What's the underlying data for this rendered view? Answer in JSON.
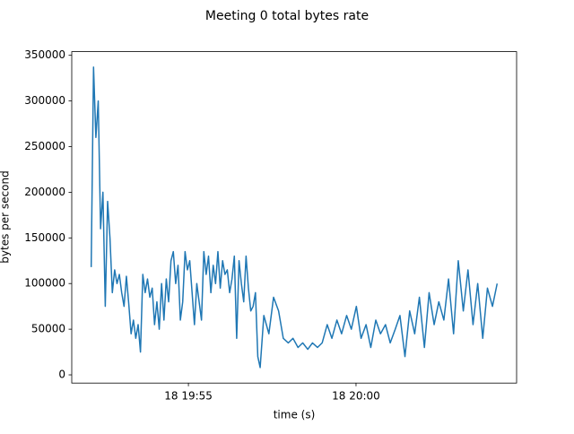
{
  "chart_data": {
    "type": "line",
    "title": "Meeting 0 total bytes rate",
    "x_label": "time (s)",
    "y_label": "bytes per second",
    "color": "#1f77b4",
    "x": [
      52.1,
      52.17,
      52.24,
      52.31,
      52.38,
      52.45,
      52.52,
      52.59,
      52.66,
      52.73,
      52.8,
      52.87,
      52.94,
      53.01,
      53.08,
      53.15,
      53.22,
      53.29,
      53.36,
      53.43,
      53.5,
      53.57,
      53.64,
      53.71,
      53.78,
      53.85,
      53.92,
      53.99,
      54.06,
      54.13,
      54.2,
      54.27,
      54.34,
      54.41,
      54.48,
      54.55,
      54.62,
      54.69,
      54.76,
      54.83,
      54.9,
      54.97,
      55.04,
      55.11,
      55.18,
      55.25,
      55.32,
      55.39,
      55.46,
      55.53,
      55.6,
      55.67,
      55.74,
      55.81,
      55.88,
      55.95,
      56.02,
      56.09,
      56.16,
      56.23,
      56.3,
      56.37,
      56.44,
      56.51,
      56.58,
      56.65,
      56.72,
      56.79,
      56.86,
      56.93,
      57.0,
      57.07,
      57.14,
      57.25,
      57.4,
      57.54,
      57.69,
      57.83,
      57.98,
      58.12,
      58.27,
      58.41,
      58.56,
      58.7,
      58.85,
      58.99,
      59.14,
      59.28,
      59.43,
      59.57,
      59.72,
      59.86,
      60.01,
      60.15,
      60.3,
      60.44,
      60.59,
      60.73,
      60.88,
      61.02,
      61.17,
      61.31,
      61.46,
      61.6,
      61.75,
      61.89,
      62.04,
      62.18,
      62.33,
      62.47,
      62.62,
      62.76,
      62.91,
      63.05,
      63.2,
      63.34,
      63.49,
      63.63,
      63.78,
      63.92,
      64.07,
      64.21
    ],
    "values": [
      118000,
      337000,
      260000,
      300000,
      160000,
      200000,
      75000,
      190000,
      150000,
      90000,
      115000,
      100000,
      110000,
      90000,
      75000,
      108000,
      78000,
      45000,
      60000,
      40000,
      55000,
      25000,
      110000,
      90000,
      105000,
      85000,
      95000,
      55000,
      80000,
      50000,
      100000,
      60000,
      105000,
      80000,
      125000,
      135000,
      100000,
      120000,
      60000,
      80000,
      135000,
      115000,
      125000,
      90000,
      55000,
      100000,
      80000,
      60000,
      135000,
      110000,
      130000,
      90000,
      120000,
      100000,
      135000,
      95000,
      125000,
      110000,
      115000,
      90000,
      105000,
      130000,
      40000,
      125000,
      100000,
      80000,
      130000,
      95000,
      70000,
      75000,
      90000,
      20000,
      8000,
      65000,
      45000,
      85000,
      70000,
      40000,
      35000,
      40000,
      30000,
      35000,
      28000,
      35000,
      30000,
      35000,
      55000,
      40000,
      60000,
      45000,
      65000,
      50000,
      75000,
      40000,
      55000,
      30000,
      60000,
      45000,
      55000,
      35000,
      50000,
      65000,
      20000,
      70000,
      45000,
      85000,
      30000,
      90000,
      55000,
      80000,
      60000,
      105000,
      45000,
      125000,
      70000,
      115000,
      55000,
      100000,
      40000,
      95000,
      75000,
      100000
    ],
    "xlim": [
      51.52,
      64.79
    ],
    "ylim": [
      -9000,
      354000
    ],
    "xticks": [
      {
        "value": 55,
        "label": "18 19:55"
      },
      {
        "value": 60,
        "label": "18 20:00"
      }
    ],
    "yticks": [
      0,
      50000,
      100000,
      150000,
      200000,
      250000,
      300000,
      350000
    ]
  }
}
